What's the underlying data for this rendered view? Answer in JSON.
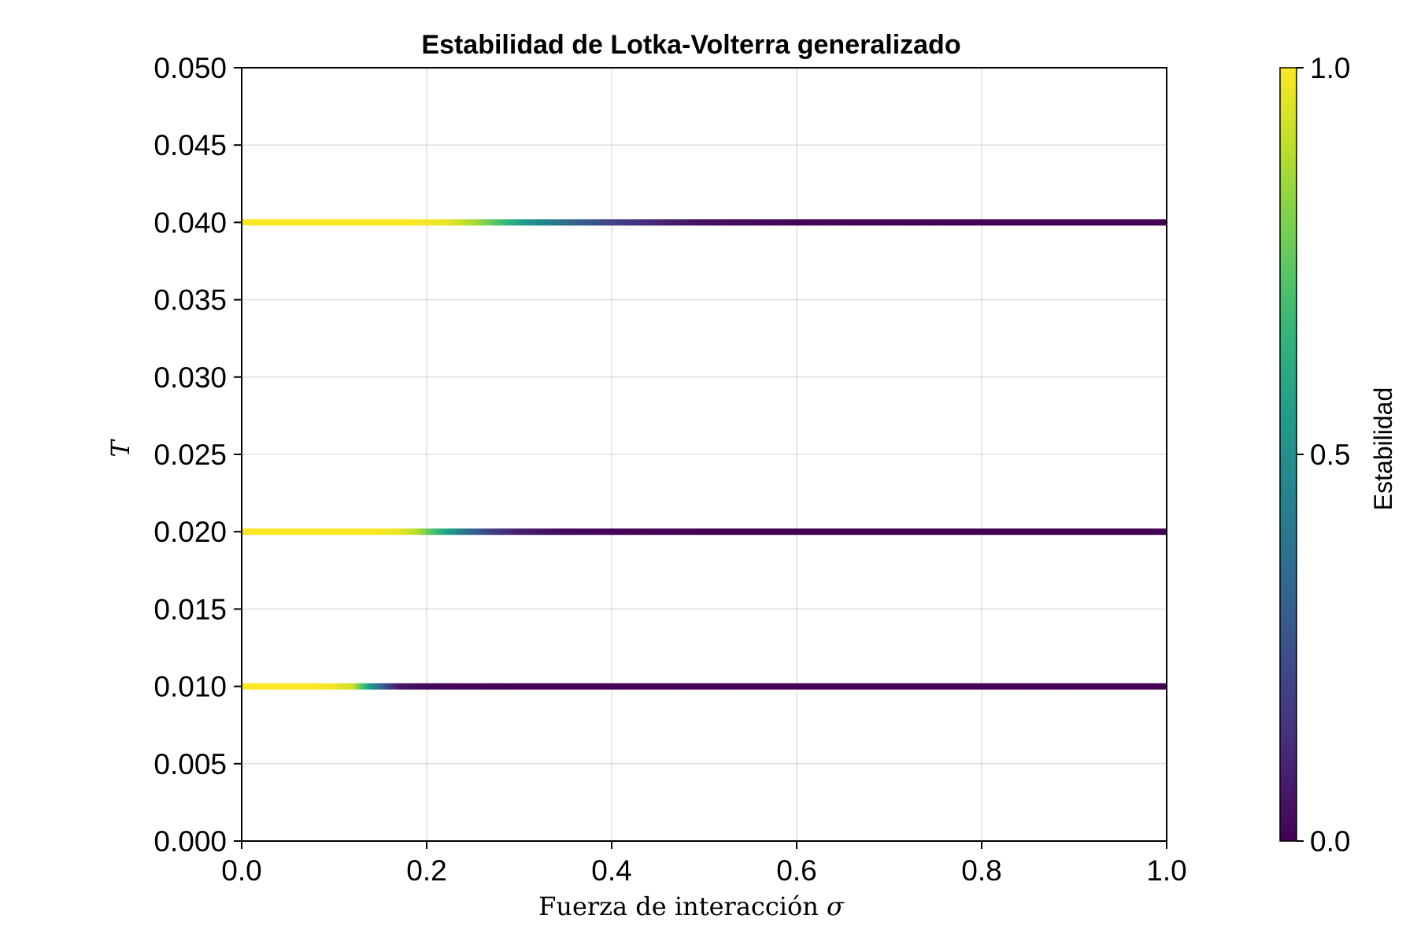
{
  "chart_data": {
    "type": "heatmap",
    "title": "Estabilidad de Lotka-Volterra generalizado",
    "xlabel": {
      "prefix": "Fuerza de interacción ",
      "symbol": "σ"
    },
    "ylabel": "T",
    "xlim": [
      0.0,
      1.0
    ],
    "ylim": [
      0.0,
      0.05
    ],
    "x_ticks": [
      "0.0",
      "0.2",
      "0.4",
      "0.6",
      "0.8",
      "1.0"
    ],
    "x_tick_values": [
      0.0,
      0.2,
      0.4,
      0.6,
      0.8,
      1.0
    ],
    "y_ticks": [
      "0.000",
      "0.005",
      "0.010",
      "0.015",
      "0.020",
      "0.025",
      "0.030",
      "0.035",
      "0.040",
      "0.045",
      "0.050"
    ],
    "y_tick_values": [
      0.0,
      0.005,
      0.01,
      0.015,
      0.02,
      0.025,
      0.03,
      0.035,
      0.04,
      0.045,
      0.05
    ],
    "grid": true,
    "colorbar": {
      "label": "Estabilidad",
      "range": [
        0.0,
        1.0
      ],
      "ticks": [
        "0.0",
        "0.5",
        "1.0"
      ],
      "tick_values": [
        0.0,
        0.5,
        1.0
      ],
      "colormap": "viridis",
      "stops": [
        "#440154",
        "#482878",
        "#3e4989",
        "#31688e",
        "#26828e",
        "#1f9e89",
        "#35b779",
        "#6ece58",
        "#b5de2b",
        "#fde725"
      ]
    },
    "rows": [
      {
        "T": 0.01,
        "sigma": [
          0.0,
          0.04,
          0.08,
          0.1,
          0.12,
          0.13,
          0.14,
          0.15,
          0.16,
          0.17,
          0.2,
          0.3,
          0.5,
          0.7,
          1.0
        ],
        "stability": [
          1.0,
          1.0,
          1.0,
          0.98,
          0.92,
          0.72,
          0.52,
          0.33,
          0.18,
          0.06,
          0.02,
          0.0,
          0.0,
          0.0,
          0.0
        ]
      },
      {
        "T": 0.02,
        "sigma": [
          0.0,
          0.08,
          0.14,
          0.17,
          0.19,
          0.21,
          0.23,
          0.25,
          0.27,
          0.3,
          0.35,
          0.5,
          0.7,
          1.0
        ],
        "stability": [
          1.0,
          1.0,
          1.0,
          0.97,
          0.88,
          0.68,
          0.5,
          0.32,
          0.18,
          0.08,
          0.02,
          0.0,
          0.0,
          0.0
        ]
      },
      {
        "T": 0.04,
        "sigma": [
          0.0,
          0.12,
          0.18,
          0.22,
          0.25,
          0.28,
          0.31,
          0.35,
          0.4,
          0.45,
          0.5,
          0.6,
          0.8,
          1.0
        ],
        "stability": [
          1.0,
          1.0,
          1.0,
          0.97,
          0.88,
          0.7,
          0.52,
          0.35,
          0.2,
          0.1,
          0.04,
          0.01,
          0.0,
          0.0
        ]
      }
    ]
  }
}
